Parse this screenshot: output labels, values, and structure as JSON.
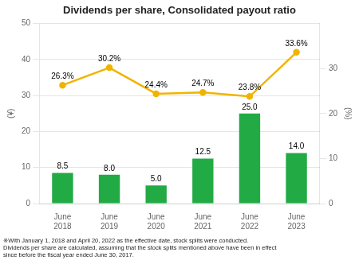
{
  "chart_data": {
    "type": "bar",
    "title": "Dividends per share, Consolidated payout ratio",
    "ylabel": "(¥)",
    "y2label": "(%)",
    "categories": [
      "June\n2018",
      "June\n2019",
      "June\n2020",
      "June\n2021",
      "June\n2022",
      "June\n2023"
    ],
    "series": [
      {
        "type": "bar",
        "color": "#22aa44",
        "values": [
          8.5,
          8.0,
          5.0,
          12.5,
          25.0,
          14.0
        ],
        "value_labels": [
          "8.5",
          "8.0",
          "5.0",
          "12.5",
          "25.0",
          "14.0"
        ]
      },
      {
        "type": "line",
        "axis": "y2",
        "color": "#f0b400",
        "values": [
          26.3,
          30.2,
          24.4,
          24.7,
          23.8,
          33.6
        ],
        "value_labels": [
          "26.3%",
          "30.2%",
          "24.4%",
          "24.7%",
          "23.8%",
          "33.6%"
        ]
      }
    ],
    "ylim": [
      0,
      50
    ],
    "yticks": [
      0,
      10,
      20,
      30,
      40,
      50
    ],
    "y2lim": [
      0,
      40
    ],
    "y2ticks": [
      0,
      10,
      20,
      30
    ],
    "grid": true,
    "data_labels": true,
    "annotations": [
      "※With January 1, 2018 and April 20, 2022 as the effective date, stock splits were conducted.",
      "Dividends per share are calculated, assuming that the stock splits mentioned above have been in effect",
      "since before the fiscal year ended June 30, 2017."
    ]
  }
}
